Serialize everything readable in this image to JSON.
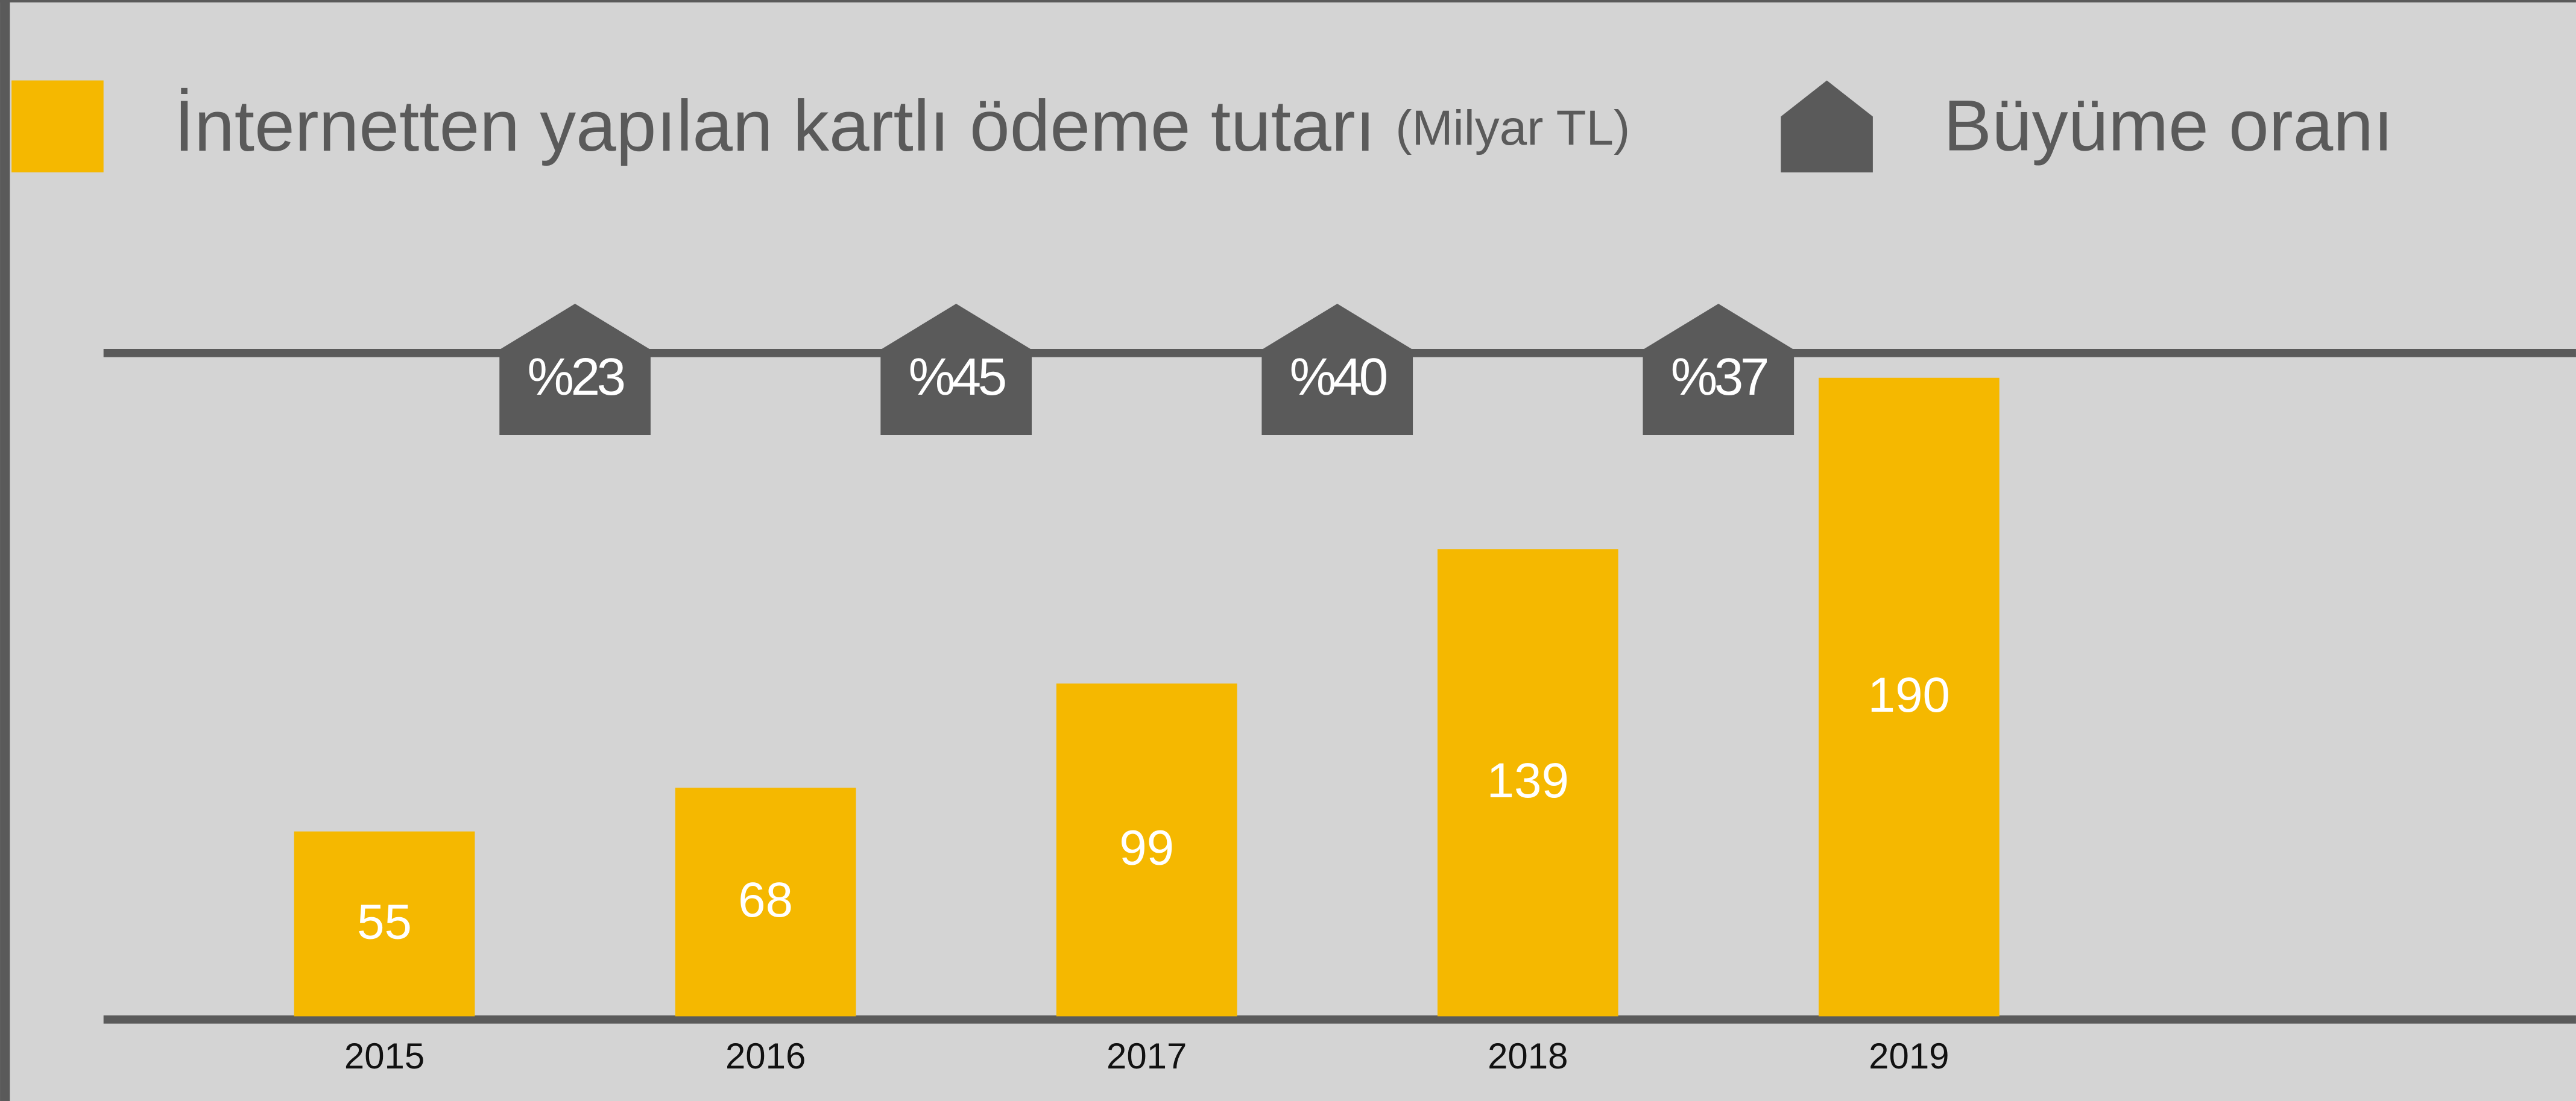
{
  "chart_data": {
    "type": "bar",
    "categories": [
      "2015",
      "2016",
      "2017",
      "2018",
      "2019"
    ],
    "series": [
      {
        "name": "İnternetten yapılan kartlı ödeme tutarı",
        "unit": "(Milyar TL)",
        "color": "#f5b800",
        "values": [
          55,
          68,
          99,
          139,
          190
        ]
      }
    ],
    "growth": {
      "name": "Büyüme oranı",
      "color": "#5a5a5a",
      "values": [
        23,
        45,
        40,
        37
      ],
      "value_labels": [
        "%23",
        "%45",
        "%40",
        "%37"
      ]
    },
    "ylim": [
      0,
      200
    ]
  }
}
